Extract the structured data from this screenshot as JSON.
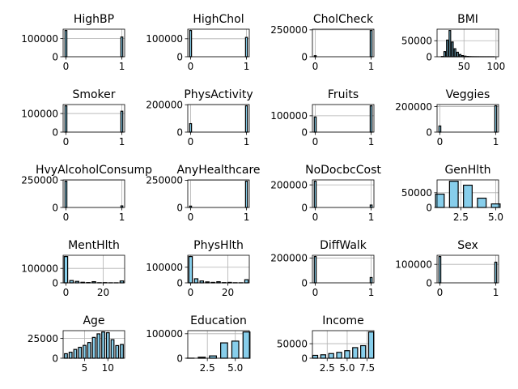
{
  "chart_data": [
    {
      "type": "bar",
      "title": "HighBP",
      "categories": [
        0,
        1
      ],
      "values": [
        144851,
        108829
      ],
      "xlim": [
        -0.05,
        1.05
      ],
      "ylim": [
        0,
        152094
      ],
      "xticks": [
        0,
        1
      ],
      "xticklabels": [
        "0",
        "1"
      ],
      "yticks": [
        0,
        100000
      ],
      "yticklabels": [
        "0",
        "100000"
      ]
    },
    {
      "type": "bar",
      "title": "HighChol",
      "categories": [
        0,
        1
      ],
      "values": [
        146089,
        107591
      ],
      "xlim": [
        -0.05,
        1.05
      ],
      "ylim": [
        0,
        153393
      ],
      "xticks": [
        0,
        1
      ],
      "xticklabels": [
        "0",
        "1"
      ],
      "yticks": [
        0,
        100000
      ],
      "yticklabels": [
        "0",
        "100000"
      ]
    },
    {
      "type": "bar",
      "title": "CholCheck",
      "categories": [
        0,
        1
      ],
      "values": [
        9470,
        244210
      ],
      "xlim": [
        -0.05,
        1.05
      ],
      "ylim": [
        0,
        256420
      ],
      "xticks": [
        0,
        1
      ],
      "xticklabels": [
        "0",
        "1"
      ],
      "yticks": [
        0,
        250000
      ],
      "yticklabels": [
        "0",
        "250000"
      ]
    },
    {
      "type": "bar",
      "title": "BMI",
      "categories": [
        16,
        20,
        24,
        28,
        32,
        36,
        40,
        44,
        48,
        52,
        56,
        60,
        64,
        68,
        72,
        76,
        80,
        84,
        88,
        92,
        96
      ],
      "values": [
        800,
        16000,
        52000,
        82000,
        46000,
        25000,
        14000,
        7000,
        3500,
        1800,
        900,
        500,
        300,
        200,
        150,
        100,
        80,
        60,
        50,
        40,
        30
      ],
      "xlim": [
        8,
        104
      ],
      "ylim": [
        0,
        86100
      ],
      "xticks": [
        50,
        100
      ],
      "xticklabels": [
        "50",
        "100"
      ],
      "yticks": [
        0,
        50000
      ],
      "yticklabels": [
        "0",
        "50000"
      ]
    },
    {
      "type": "bar",
      "title": "Smoker",
      "categories": [
        0,
        1
      ],
      "values": [
        141257,
        112423
      ],
      "xlim": [
        -0.05,
        1.05
      ],
      "ylim": [
        0,
        148320
      ],
      "xticks": [
        0,
        1
      ],
      "xticklabels": [
        "0",
        "1"
      ],
      "yticks": [
        0,
        100000
      ],
      "yticklabels": [
        "0",
        "100000"
      ]
    },
    {
      "type": "bar",
      "title": "PhysActivity",
      "categories": [
        0,
        1
      ],
      "values": [
        61760,
        191920
      ],
      "xlim": [
        -0.05,
        1.05
      ],
      "ylim": [
        0,
        201516
      ],
      "xticks": [
        0,
        1
      ],
      "xticklabels": [
        "0",
        "1"
      ],
      "yticks": [
        0,
        200000
      ],
      "yticklabels": [
        "0",
        "200000"
      ]
    },
    {
      "type": "bar",
      "title": "Fruits",
      "categories": [
        0,
        1
      ],
      "values": [
        92782,
        160898
      ],
      "xlim": [
        -0.05,
        1.05
      ],
      "ylim": [
        0,
        168943
      ],
      "xticks": [
        0,
        1
      ],
      "xticklabels": [
        "0",
        "1"
      ],
      "yticks": [
        0,
        100000
      ],
      "yticklabels": [
        "0",
        "100000"
      ]
    },
    {
      "type": "bar",
      "title": "Veggies",
      "categories": [
        0,
        1
      ],
      "values": [
        47839,
        205841
      ],
      "xlim": [
        -0.05,
        1.05
      ],
      "ylim": [
        0,
        216133
      ],
      "xticks": [
        0,
        1
      ],
      "xticklabels": [
        "0",
        "1"
      ],
      "yticks": [
        0,
        200000
      ],
      "yticklabels": [
        "0",
        "200000"
      ]
    },
    {
      "type": "bar",
      "title": "HvyAlcoholConsump",
      "categories": [
        0,
        1
      ],
      "values": [
        239424,
        14256
      ],
      "xlim": [
        -0.05,
        1.05
      ],
      "ylim": [
        0,
        251395
      ],
      "xticks": [
        0,
        1
      ],
      "xticklabels": [
        "0",
        "1"
      ],
      "yticks": [
        0,
        250000
      ],
      "yticklabels": [
        "0",
        "250000"
      ]
    },
    {
      "type": "bar",
      "title": "AnyHealthcare",
      "categories": [
        0,
        1
      ],
      "values": [
        12417,
        241263
      ],
      "xlim": [
        -0.05,
        1.05
      ],
      "ylim": [
        0,
        253326
      ],
      "xticks": [
        0,
        1
      ],
      "xticklabels": [
        "0",
        "1"
      ],
      "yticks": [
        0,
        250000
      ],
      "yticklabels": [
        "0",
        "250000"
      ]
    },
    {
      "type": "bar",
      "title": "NoDocbcCost",
      "categories": [
        0,
        1
      ],
      "values": [
        232326,
        21354
      ],
      "xlim": [
        -0.05,
        1.05
      ],
      "ylim": [
        0,
        243942
      ],
      "xticks": [
        0,
        1
      ],
      "xticklabels": [
        "0",
        "1"
      ],
      "yticks": [
        0,
        200000
      ],
      "yticklabels": [
        "0",
        "200000"
      ]
    },
    {
      "type": "bar",
      "title": "GenHlth",
      "categories": [
        1,
        2,
        3,
        4,
        5
      ],
      "values": [
        45299,
        89084,
        75646,
        31570,
        12081
      ],
      "xlim": [
        0.8,
        5.2
      ],
      "ylim": [
        0,
        93538
      ],
      "xticks": [
        2.5,
        5.0
      ],
      "xticklabels": [
        "2.5",
        "5.0"
      ],
      "yticks": [
        0,
        50000
      ],
      "yticklabels": [
        "0",
        "50000"
      ]
    },
    {
      "type": "bar",
      "title": "MentHlth",
      "categories": [
        0,
        3,
        6,
        9,
        12,
        15,
        18,
        21,
        24,
        27,
        30
      ],
      "values": [
        182000,
        16000,
        10000,
        4000,
        2000,
        8000,
        1000,
        1500,
        500,
        400,
        13000
      ],
      "xlim": [
        -1.5,
        31.5
      ],
      "ylim": [
        0,
        191100
      ],
      "xticks": [
        0,
        20
      ],
      "xticklabels": [
        "0",
        "20"
      ],
      "yticks": [
        0,
        100000
      ],
      "yticklabels": [
        "0",
        "100000"
      ]
    },
    {
      "type": "bar",
      "title": "PhysHlth",
      "categories": [
        0,
        3,
        6,
        9,
        12,
        15,
        18,
        21,
        24,
        27,
        30
      ],
      "values": [
        168000,
        26000,
        12000,
        6000,
        3000,
        7000,
        1500,
        3000,
        800,
        500,
        20000
      ],
      "xlim": [
        -1.5,
        31.5
      ],
      "ylim": [
        0,
        176400
      ],
      "xticks": [
        0,
        20
      ],
      "xticklabels": [
        "0",
        "20"
      ],
      "yticks": [
        0,
        100000
      ],
      "yticklabels": [
        "0",
        "100000"
      ]
    },
    {
      "type": "bar",
      "title": "DiffWalk",
      "categories": [
        0,
        1
      ],
      "values": [
        211005,
        42675
      ],
      "xlim": [
        -0.05,
        1.05
      ],
      "ylim": [
        0,
        221555
      ],
      "xticks": [
        0,
        1
      ],
      "xticklabels": [
        "0",
        "1"
      ],
      "yticks": [
        0,
        200000
      ],
      "yticklabels": [
        "0",
        "200000"
      ]
    },
    {
      "type": "bar",
      "title": "Sex",
      "categories": [
        0,
        1
      ],
      "values": [
        141974,
        111706
      ],
      "xlim": [
        -0.05,
        1.05
      ],
      "ylim": [
        0,
        149073
      ],
      "xticks": [
        0,
        1
      ],
      "xticklabels": [
        "0",
        "1"
      ],
      "yticks": [
        0,
        100000
      ],
      "yticklabels": [
        "0",
        "100000"
      ]
    },
    {
      "type": "bar",
      "title": "Age",
      "categories": [
        1,
        2,
        3,
        4,
        5,
        6,
        7,
        8,
        9,
        10,
        11,
        12,
        13
      ],
      "values": [
        5700,
        7600,
        11100,
        13800,
        16200,
        19800,
        26300,
        30800,
        33200,
        32200,
        23500,
        15980,
        17363
      ],
      "xlim": [
        0.4,
        13.6
      ],
      "ylim": [
        0,
        34860
      ],
      "xticks": [
        5,
        10
      ],
      "xticklabels": [
        "5",
        "10"
      ],
      "yticks": [
        0,
        25000
      ],
      "yticklabels": [
        "0",
        "25000"
      ]
    },
    {
      "type": "bar",
      "title": "Education",
      "categories": [
        1,
        2,
        3,
        4,
        5,
        6
      ],
      "values": [
        174,
        4043,
        9478,
        62750,
        69910,
        107325
      ],
      "xlim": [
        0.75,
        6.25
      ],
      "ylim": [
        0,
        112691
      ],
      "xticks": [
        2.5,
        5.0
      ],
      "xticklabels": [
        "2.5",
        "5.0"
      ],
      "yticks": [
        0,
        100000
      ],
      "yticklabels": [
        "0",
        "100000"
      ]
    },
    {
      "type": "bar",
      "title": "Income",
      "categories": [
        1,
        2,
        3,
        4,
        5,
        6,
        7,
        8
      ],
      "values": [
        9811,
        11783,
        15994,
        20135,
        25883,
        36470,
        43219,
        90385
      ],
      "xlim": [
        0.65,
        8.35
      ],
      "ylim": [
        0,
        94904
      ],
      "xticks": [
        2.5,
        5.0,
        7.5
      ],
      "xticklabels": [
        "2.5",
        "5.0",
        "7.5"
      ],
      "yticks": [
        0,
        50000
      ],
      "yticklabels": [
        "0",
        "50000"
      ]
    }
  ]
}
